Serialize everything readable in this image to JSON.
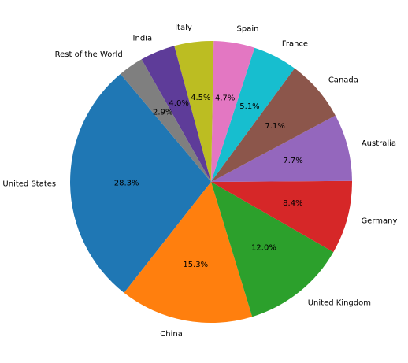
{
  "chart_data": {
    "type": "pie",
    "title": "",
    "categories": [
      "United States",
      "China",
      "United Kingdom",
      "Germany",
      "Australia",
      "Canada",
      "France",
      "Spain",
      "Italy",
      "India",
      "Rest of the World"
    ],
    "values": [
      28.3,
      15.3,
      12.0,
      8.4,
      7.7,
      7.1,
      5.1,
      4.7,
      4.5,
      4.0,
      2.9
    ],
    "percent_labels": [
      "28.3%",
      "15.3%",
      "12.0%",
      "8.4%",
      "7.7%",
      "7.1%",
      "5.1%",
      "4.7%",
      "4.5%",
      "4.0%",
      "2.9%"
    ],
    "colors": [
      "#1f77b4",
      "#ff7f0e",
      "#2ca02c",
      "#d62728",
      "#9467bd",
      "#8c564b",
      "#17becf",
      "#e377c2",
      "#bcbd22",
      "#5e3c99",
      "#7f7f7f"
    ],
    "start_angle_deg": 130,
    "direction": "counterclockwise",
    "legend": "none"
  }
}
